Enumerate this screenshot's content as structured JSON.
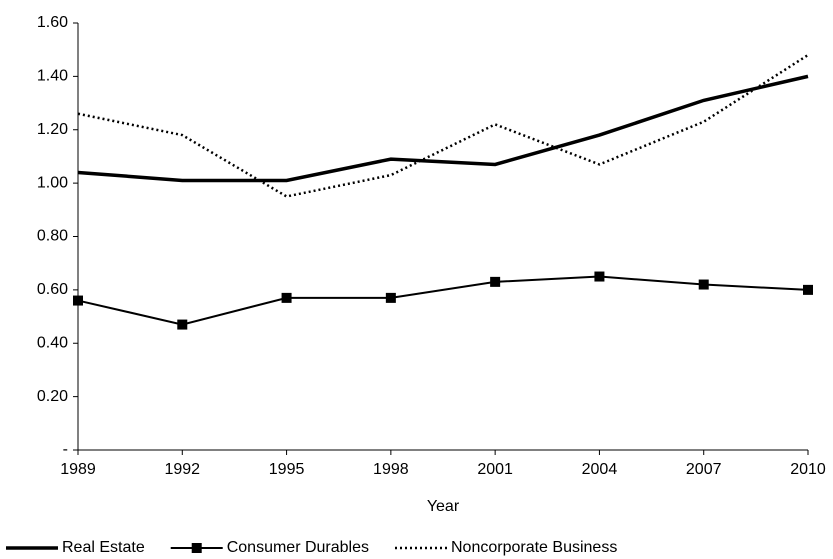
{
  "chart_data": {
    "type": "line",
    "x_label": "Year",
    "x": [
      1989,
      1992,
      1995,
      1998,
      2001,
      2004,
      2007,
      2010
    ],
    "xlim": [
      1989,
      2010
    ],
    "xticks": [
      1989,
      1992,
      1995,
      1998,
      2001,
      2004,
      2007,
      2010
    ],
    "ylim": [
      0,
      1.6
    ],
    "yticks": [
      {
        "value": 0,
        "label": "-"
      },
      {
        "value": 0.2,
        "label": "0.20"
      },
      {
        "value": 0.4,
        "label": "0.40"
      },
      {
        "value": 0.6,
        "label": "0.60"
      },
      {
        "value": 0.8,
        "label": "0.80"
      },
      {
        "value": 1.0,
        "label": "1.00"
      },
      {
        "value": 1.2,
        "label": "1.20"
      },
      {
        "value": 1.4,
        "label": "1.40"
      },
      {
        "value": 1.6,
        "label": "1.60"
      }
    ],
    "grid": false,
    "legend": "bottom",
    "series": [
      {
        "name": "Real Estate",
        "color": "#000000",
        "line_width": 3.5,
        "dash": "solid",
        "marker": "none",
        "values": [
          1.04,
          1.01,
          1.01,
          1.09,
          1.07,
          1.18,
          1.31,
          1.4
        ]
      },
      {
        "name": "Consumer Durables",
        "color": "#000000",
        "line_width": 2,
        "dash": "solid",
        "marker": "square",
        "values": [
          0.56,
          0.47,
          0.57,
          0.57,
          0.63,
          0.65,
          0.62,
          0.6
        ]
      },
      {
        "name": "Noncorporate Business",
        "color": "#000000",
        "line_width": 2.5,
        "dash": "dotted",
        "marker": "none",
        "values": [
          1.26,
          1.18,
          0.95,
          1.03,
          1.22,
          1.07,
          1.23,
          1.48
        ]
      }
    ]
  }
}
